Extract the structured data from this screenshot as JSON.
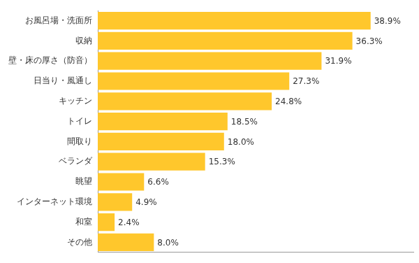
{
  "chart_data": {
    "type": "bar",
    "orientation": "horizontal",
    "categories": [
      "お風呂場・洗面所",
      "収納",
      "壁・床の厚さ（防音）",
      "日当り・風通し",
      "キッチン",
      "トイレ",
      "間取り",
      "ベランダ",
      "眺望",
      "インターネット環境",
      "和室",
      "その他"
    ],
    "values": [
      38.9,
      36.3,
      31.9,
      27.3,
      24.8,
      18.5,
      18.0,
      15.3,
      6.6,
      4.9,
      2.4,
      8.0
    ],
    "value_labels": [
      "38.9%",
      "36.3%",
      "31.9%",
      "27.3%",
      "24.8%",
      "18.5%",
      "18.0%",
      "15.3%",
      "6.6%",
      "4.9%",
      "2.4%",
      "8.0%"
    ],
    "color": "#ffc72c",
    "xlim": [
      0,
      45
    ],
    "grid": false,
    "data_labels": true,
    "tick_labels": "y"
  }
}
